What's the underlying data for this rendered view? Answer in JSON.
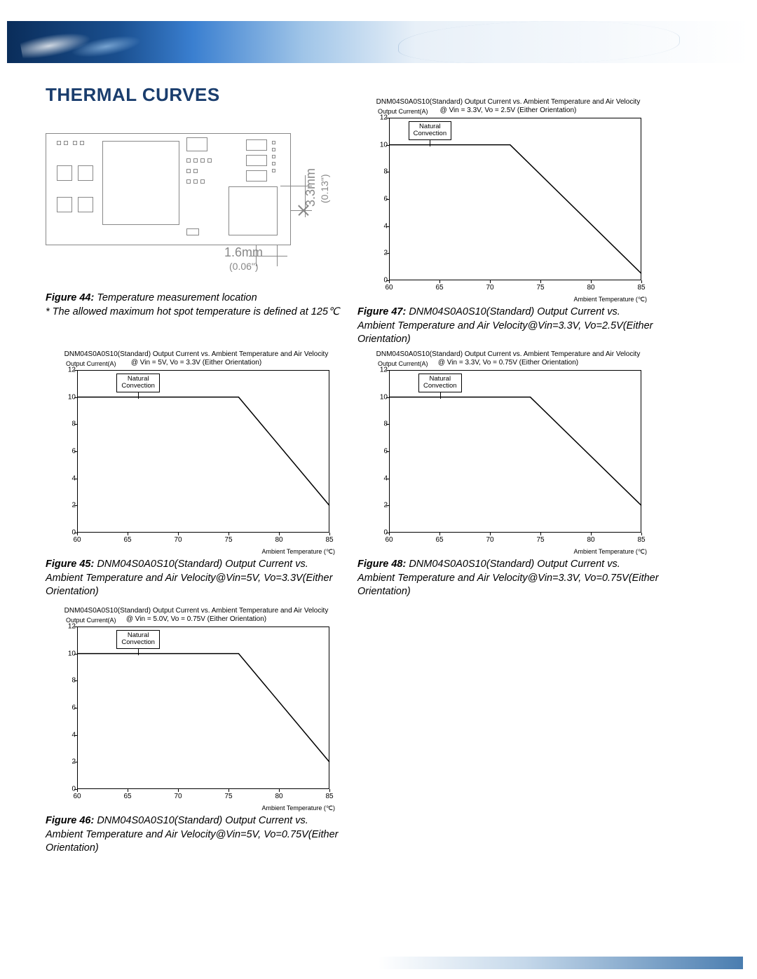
{
  "heading": "THERMAL CURVES",
  "colors": {
    "heading": "#1a3d6d",
    "border": "#888888",
    "axis": "#000000",
    "background": "#ffffff"
  },
  "pcb": {
    "dim_h_value": "1.6mm",
    "dim_h_inch": "(0.06\")",
    "dim_v_value": "3.3mm",
    "dim_v_inch": "(0.13\")"
  },
  "fig44": {
    "label": "Figure 44:",
    "title": "Temperature measurement location",
    "note": "* The allowed maximum hot spot temperature is defined at 125℃"
  },
  "fig45": {
    "label": "Figure 45:",
    "title": "DNM04S0A0S10(Standard) Output Current vs. Ambient Temperature and Air Velocity@Vin=5V, Vo=3.3V(Either Orientation)"
  },
  "fig46": {
    "label": "Figure 46:",
    "title": "DNM04S0A0S10(Standard) Output Current vs. Ambient Temperature and Air Velocity@Vin=5V, Vo=0.75V(Either Orientation)"
  },
  "fig47": {
    "label": "Figure 47:",
    "title": "DNM04S0A0S10(Standard) Output Current vs. Ambient Temperature and Air Velocity@Vin=3.3V, Vo=2.5V(Either Orientation)"
  },
  "fig48": {
    "label": "Figure 48:",
    "title": "DNM04S0A0S10(Standard) Output Current vs. Ambient Temperature and Air Velocity@Vin=3.3V, Vo=0.75V(Either Orientation)"
  },
  "chart_common": {
    "title_line1": "DNM04S0A0S10(Standard) Output Current vs. Ambient Temperature and Air Velocity",
    "ylabel": "Output Current(A)",
    "xlabel": "Ambient Temperature (℃)",
    "legend": "Natural\nConvection",
    "xlim": [
      60,
      85
    ],
    "ylim": [
      0,
      12
    ],
    "xticks": [
      60,
      65,
      70,
      75,
      80,
      85
    ],
    "yticks": [
      0,
      2,
      4,
      6,
      8,
      10,
      12
    ]
  },
  "charts": {
    "c45": {
      "subtitle": "@ Vin = 5V, Vo = 3.3V (Either Orientation)",
      "line": [
        [
          60,
          10
        ],
        [
          76,
          10
        ],
        [
          85,
          2
        ]
      ]
    },
    "c46": {
      "subtitle": "@ Vin = 5.0V, Vo = 0.75V (Either Orientation)",
      "line": [
        [
          60,
          10
        ],
        [
          76,
          10
        ],
        [
          85,
          2
        ]
      ]
    },
    "c47": {
      "subtitle": "@ Vin = 3.3V, Vo = 2.5V (Either Orientation)",
      "line": [
        [
          60,
          10
        ],
        [
          72,
          10
        ],
        [
          85,
          0.5
        ]
      ]
    },
    "c48": {
      "subtitle": "@ Vin = 3.3V, Vo = 0.75V (Either Orientation)",
      "line": [
        [
          60,
          10
        ],
        [
          74,
          10
        ],
        [
          85,
          2
        ]
      ]
    }
  }
}
